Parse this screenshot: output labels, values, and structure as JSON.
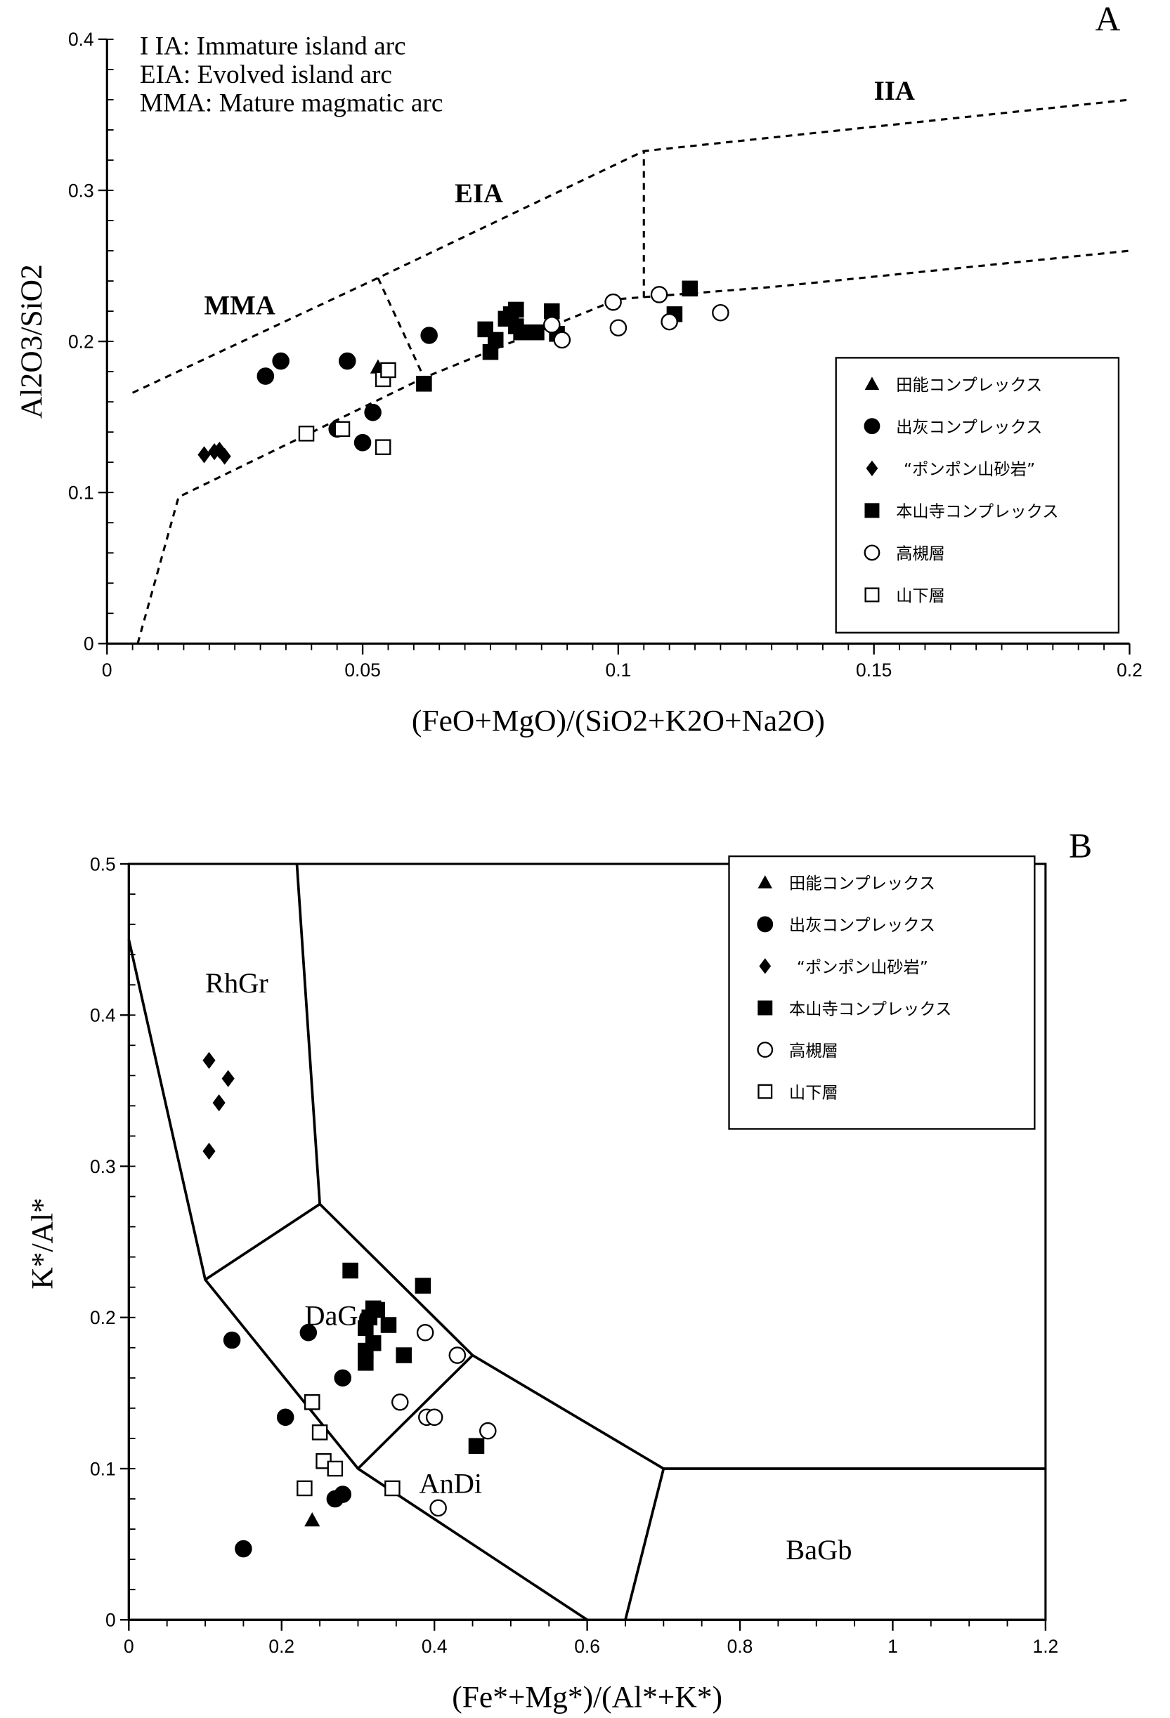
{
  "legend_labels": [
    "田能コンプレックス",
    "出灰コンプレックス",
    "“ポンポン山砂岩”",
    "本山寺コンプレックス",
    "高槻層",
    "山下層"
  ],
  "legend_markers": [
    "triangle-filled",
    "circle-filled",
    "diamond-filled",
    "square-filled",
    "circle-open",
    "square-open"
  ],
  "chart_data": [
    {
      "type": "scatter",
      "panel_label": "A",
      "xlabel": "(FeO+MgO)/(SiO2+K2O+Na2O)",
      "ylabel": "Al2O3/SiO2",
      "xlim": [
        0,
        0.2
      ],
      "ylim": [
        0,
        0.4
      ],
      "xticks": [
        "0",
        "0.05",
        "0.1",
        "0.15",
        "0.2"
      ],
      "yticks": [
        "0",
        "0.1",
        "0.2",
        "0.3",
        "0.4"
      ],
      "notes": [
        "I IA:  Immature island arc",
        "EIA:  Evolved island arc",
        "MMA:  Mature magmatic arc"
      ],
      "regions": [
        {
          "label": "IIA",
          "x": 0.15,
          "y": 0.36
        },
        {
          "label": "EIA",
          "x": 0.068,
          "y": 0.292
        },
        {
          "label": "MMA",
          "x": 0.019,
          "y": 0.218
        }
      ],
      "boundaries": [
        [
          [
            0.005,
            0.166
          ],
          [
            0.053,
            0.242
          ],
          [
            0.105,
            0.326
          ],
          [
            0.2,
            0.36
          ]
        ],
        [
          [
            0.006,
            0
          ],
          [
            0.014,
            0.097
          ],
          [
            0.062,
            0.176
          ],
          [
            0.1,
            0.228
          ],
          [
            0.13,
            0.236
          ],
          [
            0.2,
            0.26
          ]
        ],
        [
          [
            0.105,
            0.229
          ],
          [
            0.105,
            0.326
          ]
        ],
        [
          [
            0.053,
            0.242
          ],
          [
            0.062,
            0.176
          ]
        ]
      ],
      "legend_placement": "lower-right",
      "series": [
        {
          "name": "田能コンプレックス",
          "points": [
            [
              0.053,
              0.183
            ]
          ]
        },
        {
          "name": "出灰コンプレックス",
          "points": [
            [
              0.031,
              0.177
            ],
            [
              0.034,
              0.187
            ],
            [
              0.047,
              0.187
            ],
            [
              0.063,
              0.204
            ],
            [
              0.052,
              0.153
            ],
            [
              0.045,
              0.142
            ],
            [
              0.05,
              0.133
            ]
          ]
        },
        {
          "name": "“ポンポン山砂岩”",
          "points": [
            [
              0.019,
              0.125
            ],
            [
              0.021,
              0.127
            ],
            [
              0.022,
              0.128
            ],
            [
              0.023,
              0.124
            ]
          ]
        },
        {
          "name": "本山寺コンプレックス",
          "points": [
            [
              0.062,
              0.172
            ],
            [
              0.074,
              0.208
            ],
            [
              0.076,
              0.201
            ],
            [
              0.075,
              0.193
            ],
            [
              0.078,
              0.215
            ],
            [
              0.079,
              0.218
            ],
            [
              0.08,
              0.221
            ],
            [
              0.08,
              0.21
            ],
            [
              0.081,
              0.206
            ],
            [
              0.084,
              0.206
            ],
            [
              0.087,
              0.22
            ],
            [
              0.088,
              0.205
            ],
            [
              0.111,
              0.218
            ],
            [
              0.114,
              0.235
            ]
          ]
        },
        {
          "name": "高槻層",
          "points": [
            [
              0.087,
              0.211
            ],
            [
              0.089,
              0.201
            ],
            [
              0.099,
              0.226
            ],
            [
              0.1,
              0.209
            ],
            [
              0.108,
              0.231
            ],
            [
              0.11,
              0.213
            ],
            [
              0.12,
              0.219
            ]
          ]
        },
        {
          "name": "山下層",
          "points": [
            [
              0.039,
              0.139
            ],
            [
              0.046,
              0.142
            ],
            [
              0.054,
              0.175
            ],
            [
              0.055,
              0.181
            ],
            [
              0.054,
              0.13
            ]
          ]
        }
      ]
    },
    {
      "type": "scatter",
      "panel_label": "B",
      "xlabel": "(Fe*+Mg*)/(Al*+K*)",
      "ylabel": "K*/Al*",
      "xlim": [
        0,
        1.2
      ],
      "ylim": [
        0,
        0.5
      ],
      "xticks": [
        "0",
        "0.2",
        "0.4",
        "0.6",
        "0.8",
        "1",
        "1.2"
      ],
      "yticks": [
        "0",
        "0.1",
        "0.2",
        "0.3",
        "0.4",
        "0.5"
      ],
      "notes": [],
      "regions": [
        {
          "label": "RhGr",
          "x": 0.1,
          "y": 0.415
        },
        {
          "label": "DaGd",
          "x": 0.23,
          "y": 0.195
        },
        {
          "label": "AnDi",
          "x": 0.38,
          "y": 0.084
        },
        {
          "label": "BaGb",
          "x": 0.86,
          "y": 0.04
        }
      ],
      "boundaries": [
        [
          [
            0,
            0.45
          ],
          [
            0.1,
            0.225
          ],
          [
            0.3,
            0.1
          ],
          [
            0.6,
            0
          ]
        ],
        [
          [
            0.22,
            0.5
          ],
          [
            0.25,
            0.275
          ],
          [
            0.45,
            0.175
          ],
          [
            0.7,
            0.1
          ],
          [
            1.2,
            0.1
          ]
        ],
        [
          [
            0.1,
            0.225
          ],
          [
            0.25,
            0.275
          ]
        ],
        [
          [
            0.3,
            0.1
          ],
          [
            0.45,
            0.175
          ]
        ],
        [
          [
            0.7,
            0.1
          ],
          [
            0.65,
            0
          ]
        ]
      ],
      "legend_placement": "top-right",
      "series": [
        {
          "name": "田能コンプレックス",
          "points": [
            [
              0.24,
              0.066
            ]
          ]
        },
        {
          "name": "出灰コンプレックス",
          "points": [
            [
              0.135,
              0.185
            ],
            [
              0.235,
              0.19
            ],
            [
              0.28,
              0.16
            ],
            [
              0.205,
              0.134
            ],
            [
              0.27,
              0.08
            ],
            [
              0.28,
              0.083
            ],
            [
              0.15,
              0.047
            ]
          ]
        },
        {
          "name": "“ポンポン山砂岩”",
          "points": [
            [
              0.105,
              0.37
            ],
            [
              0.13,
              0.358
            ],
            [
              0.118,
              0.342
            ],
            [
              0.105,
              0.31
            ]
          ]
        },
        {
          "name": "本山寺コンプレックス",
          "points": [
            [
              0.29,
              0.231
            ],
            [
              0.385,
              0.221
            ],
            [
              0.31,
              0.193
            ],
            [
              0.315,
              0.2
            ],
            [
              0.32,
              0.206
            ],
            [
              0.325,
              0.205
            ],
            [
              0.34,
              0.195
            ],
            [
              0.31,
              0.178
            ],
            [
              0.32,
              0.183
            ],
            [
              0.31,
              0.17
            ],
            [
              0.36,
              0.175
            ],
            [
              0.455,
              0.115
            ]
          ]
        },
        {
          "name": "高槻層",
          "points": [
            [
              0.388,
              0.19
            ],
            [
              0.43,
              0.175
            ],
            [
              0.355,
              0.144
            ],
            [
              0.39,
              0.134
            ],
            [
              0.4,
              0.134
            ],
            [
              0.47,
              0.125
            ],
            [
              0.405,
              0.074
            ]
          ]
        },
        {
          "name": "山下層",
          "points": [
            [
              0.24,
              0.144
            ],
            [
              0.25,
              0.124
            ],
            [
              0.255,
              0.105
            ],
            [
              0.27,
              0.1
            ],
            [
              0.23,
              0.087
            ],
            [
              0.345,
              0.087
            ]
          ]
        }
      ]
    }
  ]
}
